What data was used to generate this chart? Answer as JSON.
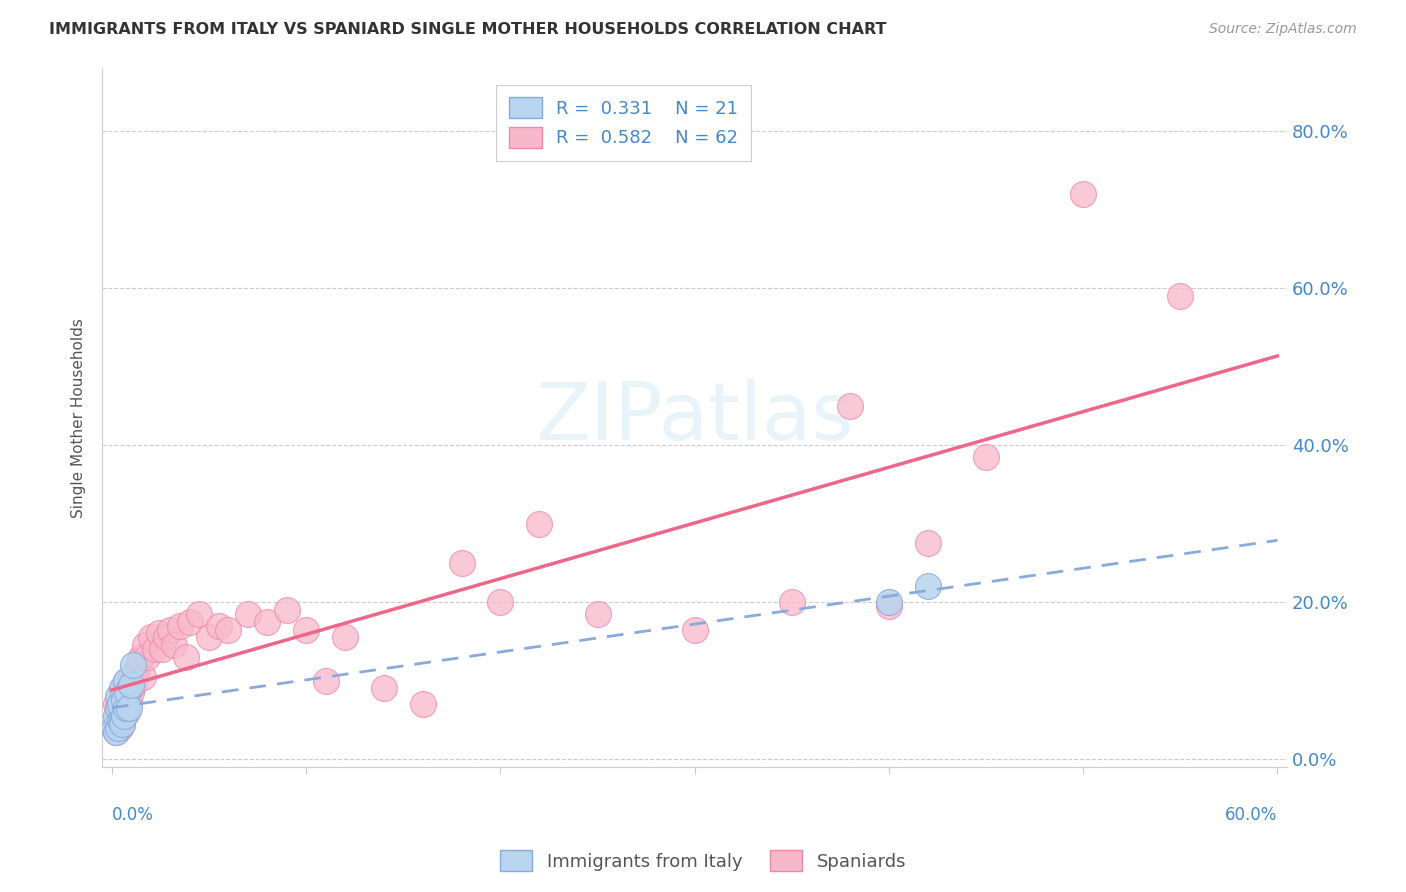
{
  "title": "IMMIGRANTS FROM ITALY VS SPANIARD SINGLE MOTHER HOUSEHOLDS CORRELATION CHART",
  "source": "Source: ZipAtlas.com",
  "ylabel": "Single Mother Households",
  "ytick_labels": [
    "0.0%",
    "20.0%",
    "40.0%",
    "60.0%",
    "80.0%"
  ],
  "ytick_values": [
    0.0,
    0.2,
    0.4,
    0.6,
    0.8
  ],
  "xlim": [
    0.0,
    0.6
  ],
  "ylim": [
    0.0,
    0.88
  ],
  "legend_label1": "R =  0.331    N = 21",
  "legend_label2": "R =  0.582    N = 62",
  "legend_bottom_label1": "Immigrants from Italy",
  "legend_bottom_label2": "Spaniards",
  "color_blue_fill": "#b8d4ee",
  "color_pink_fill": "#f8b8cc",
  "color_blue_edge": "#88aadd",
  "color_pink_edge": "#ee88aa",
  "color_blue_line": "#88aadd",
  "color_pink_line": "#ee6688",
  "color_blue_text": "#4488cc",
  "grid_color": "#cccccc",
  "italy_x": [
    0.001,
    0.002,
    0.002,
    0.003,
    0.003,
    0.003,
    0.004,
    0.004,
    0.005,
    0.005,
    0.005,
    0.006,
    0.006,
    0.007,
    0.007,
    0.008,
    0.009,
    0.01,
    0.011,
    0.4,
    0.42
  ],
  "italy_y": [
    0.04,
    0.035,
    0.055,
    0.04,
    0.065,
    0.08,
    0.05,
    0.07,
    0.05,
    0.045,
    0.09,
    0.055,
    0.075,
    0.065,
    0.1,
    0.085,
    0.065,
    0.095,
    0.12,
    0.2,
    0.22
  ],
  "spain_x": [
    0.001,
    0.002,
    0.002,
    0.003,
    0.003,
    0.004,
    0.004,
    0.004,
    0.005,
    0.005,
    0.006,
    0.006,
    0.007,
    0.007,
    0.008,
    0.008,
    0.009,
    0.009,
    0.01,
    0.01,
    0.011,
    0.012,
    0.013,
    0.014,
    0.015,
    0.016,
    0.017,
    0.018,
    0.02,
    0.022,
    0.024,
    0.026,
    0.028,
    0.03,
    0.032,
    0.035,
    0.038,
    0.04,
    0.045,
    0.05,
    0.055,
    0.06,
    0.07,
    0.08,
    0.09,
    0.1,
    0.11,
    0.12,
    0.14,
    0.16,
    0.18,
    0.2,
    0.22,
    0.25,
    0.3,
    0.35,
    0.38,
    0.4,
    0.42,
    0.45,
    0.5,
    0.55
  ],
  "spain_y": [
    0.04,
    0.035,
    0.07,
    0.05,
    0.065,
    0.04,
    0.06,
    0.08,
    0.045,
    0.07,
    0.055,
    0.09,
    0.065,
    0.1,
    0.06,
    0.08,
    0.075,
    0.095,
    0.085,
    0.105,
    0.095,
    0.11,
    0.115,
    0.125,
    0.13,
    0.105,
    0.145,
    0.13,
    0.155,
    0.14,
    0.16,
    0.14,
    0.155,
    0.165,
    0.145,
    0.17,
    0.13,
    0.175,
    0.185,
    0.155,
    0.17,
    0.165,
    0.185,
    0.175,
    0.19,
    0.165,
    0.1,
    0.155,
    0.09,
    0.07,
    0.25,
    0.2,
    0.3,
    0.185,
    0.165,
    0.2,
    0.45,
    0.195,
    0.275,
    0.385,
    0.72,
    0.59
  ]
}
